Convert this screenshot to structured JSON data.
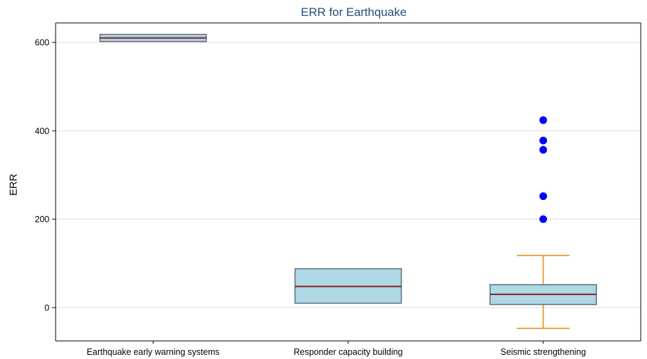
{
  "chart_data": {
    "type": "box",
    "title": "ERR for Earthquake",
    "xlabel": "",
    "ylabel": "ERR",
    "ylim": [
      -70,
      640
    ],
    "yticks": [
      0,
      200,
      400,
      600
    ],
    "grid": true,
    "categories": [
      "Earthquake early warning systems",
      "Responder capacity building",
      "Seismic strengthening"
    ],
    "boxes": [
      {
        "category": "Earthquake early warning systems",
        "q1": 602,
        "median": 610,
        "q3": 618,
        "whisker_low": null,
        "whisker_high": null,
        "outliers": []
      },
      {
        "category": "Responder capacity building",
        "q1": 10,
        "median": 48,
        "q3": 88,
        "whisker_low": null,
        "whisker_high": null,
        "outliers": []
      },
      {
        "category": "Seismic strengthening",
        "q1": 7,
        "median": 30,
        "q3": 52,
        "whisker_low": -47,
        "whisker_high": 118,
        "outliers": [
          424,
          378,
          357,
          252,
          200
        ]
      }
    ],
    "colors": {
      "box_fill": "#aed8e6",
      "box_stroke": "#5a6e78",
      "median": "#8b1a1a",
      "whisker": "#e8a33a",
      "outlier": "#0000ff",
      "grid": "#dcdcdc",
      "axis": "#000000"
    }
  }
}
